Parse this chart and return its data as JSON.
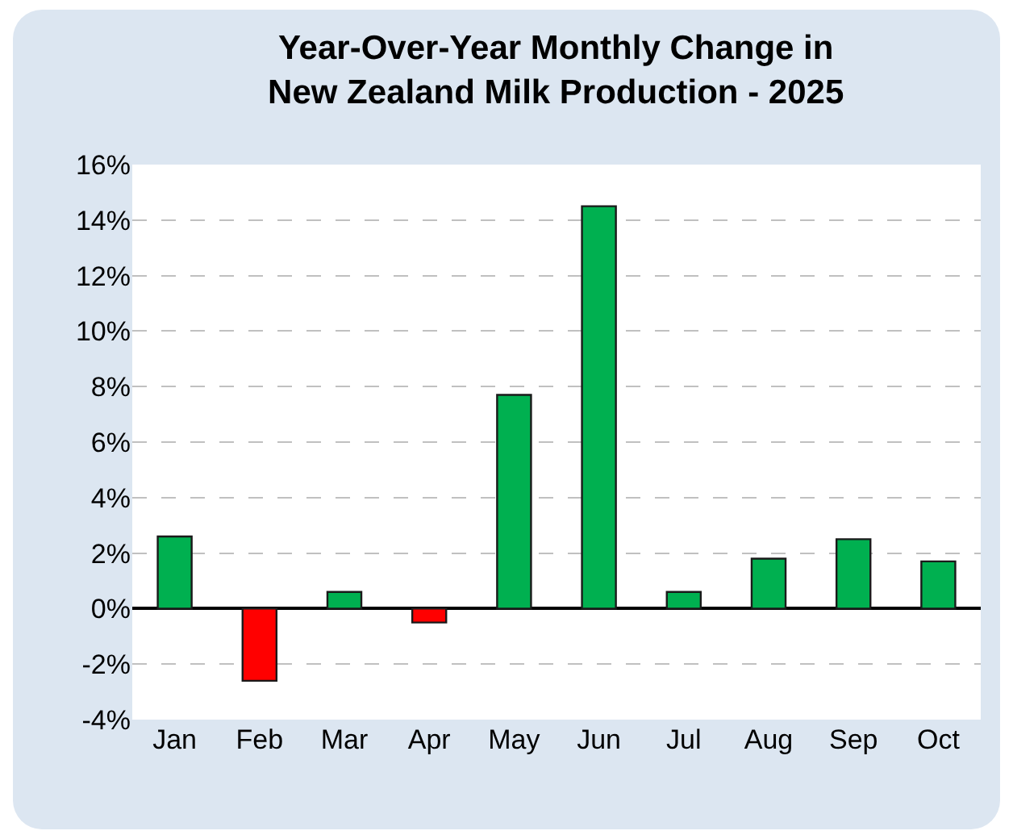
{
  "chart_data": {
    "type": "bar",
    "title": "Year-Over-Year Monthly Change in\nNew Zealand Milk Production - 2025",
    "categories": [
      "Jan",
      "Feb",
      "Mar",
      "Apr",
      "May",
      "Jun",
      "Jul",
      "Aug",
      "Sep",
      "Oct"
    ],
    "values": [
      2.6,
      -2.6,
      0.6,
      -0.5,
      7.7,
      14.5,
      0.6,
      1.8,
      2.5,
      1.7
    ],
    "colors": [
      "#00b050",
      "#ff0000",
      "#00b050",
      "#ff0000",
      "#00b050",
      "#00b050",
      "#00b050",
      "#00b050",
      "#00b050",
      "#00b050"
    ],
    "ylim": [
      -4,
      16
    ],
    "yticks": [
      {
        "value": -4,
        "label": "-4%"
      },
      {
        "value": -2,
        "label": "-2%"
      },
      {
        "value": 0,
        "label": "0%"
      },
      {
        "value": 2,
        "label": "2%"
      },
      {
        "value": 4,
        "label": "4%"
      },
      {
        "value": 6,
        "label": "6%"
      },
      {
        "value": 8,
        "label": "8%"
      },
      {
        "value": 10,
        "label": "10%"
      },
      {
        "value": 12,
        "label": "12%"
      },
      {
        "value": 14,
        "label": "14%"
      },
      {
        "value": 16,
        "label": "16%"
      }
    ],
    "grid": "y"
  }
}
